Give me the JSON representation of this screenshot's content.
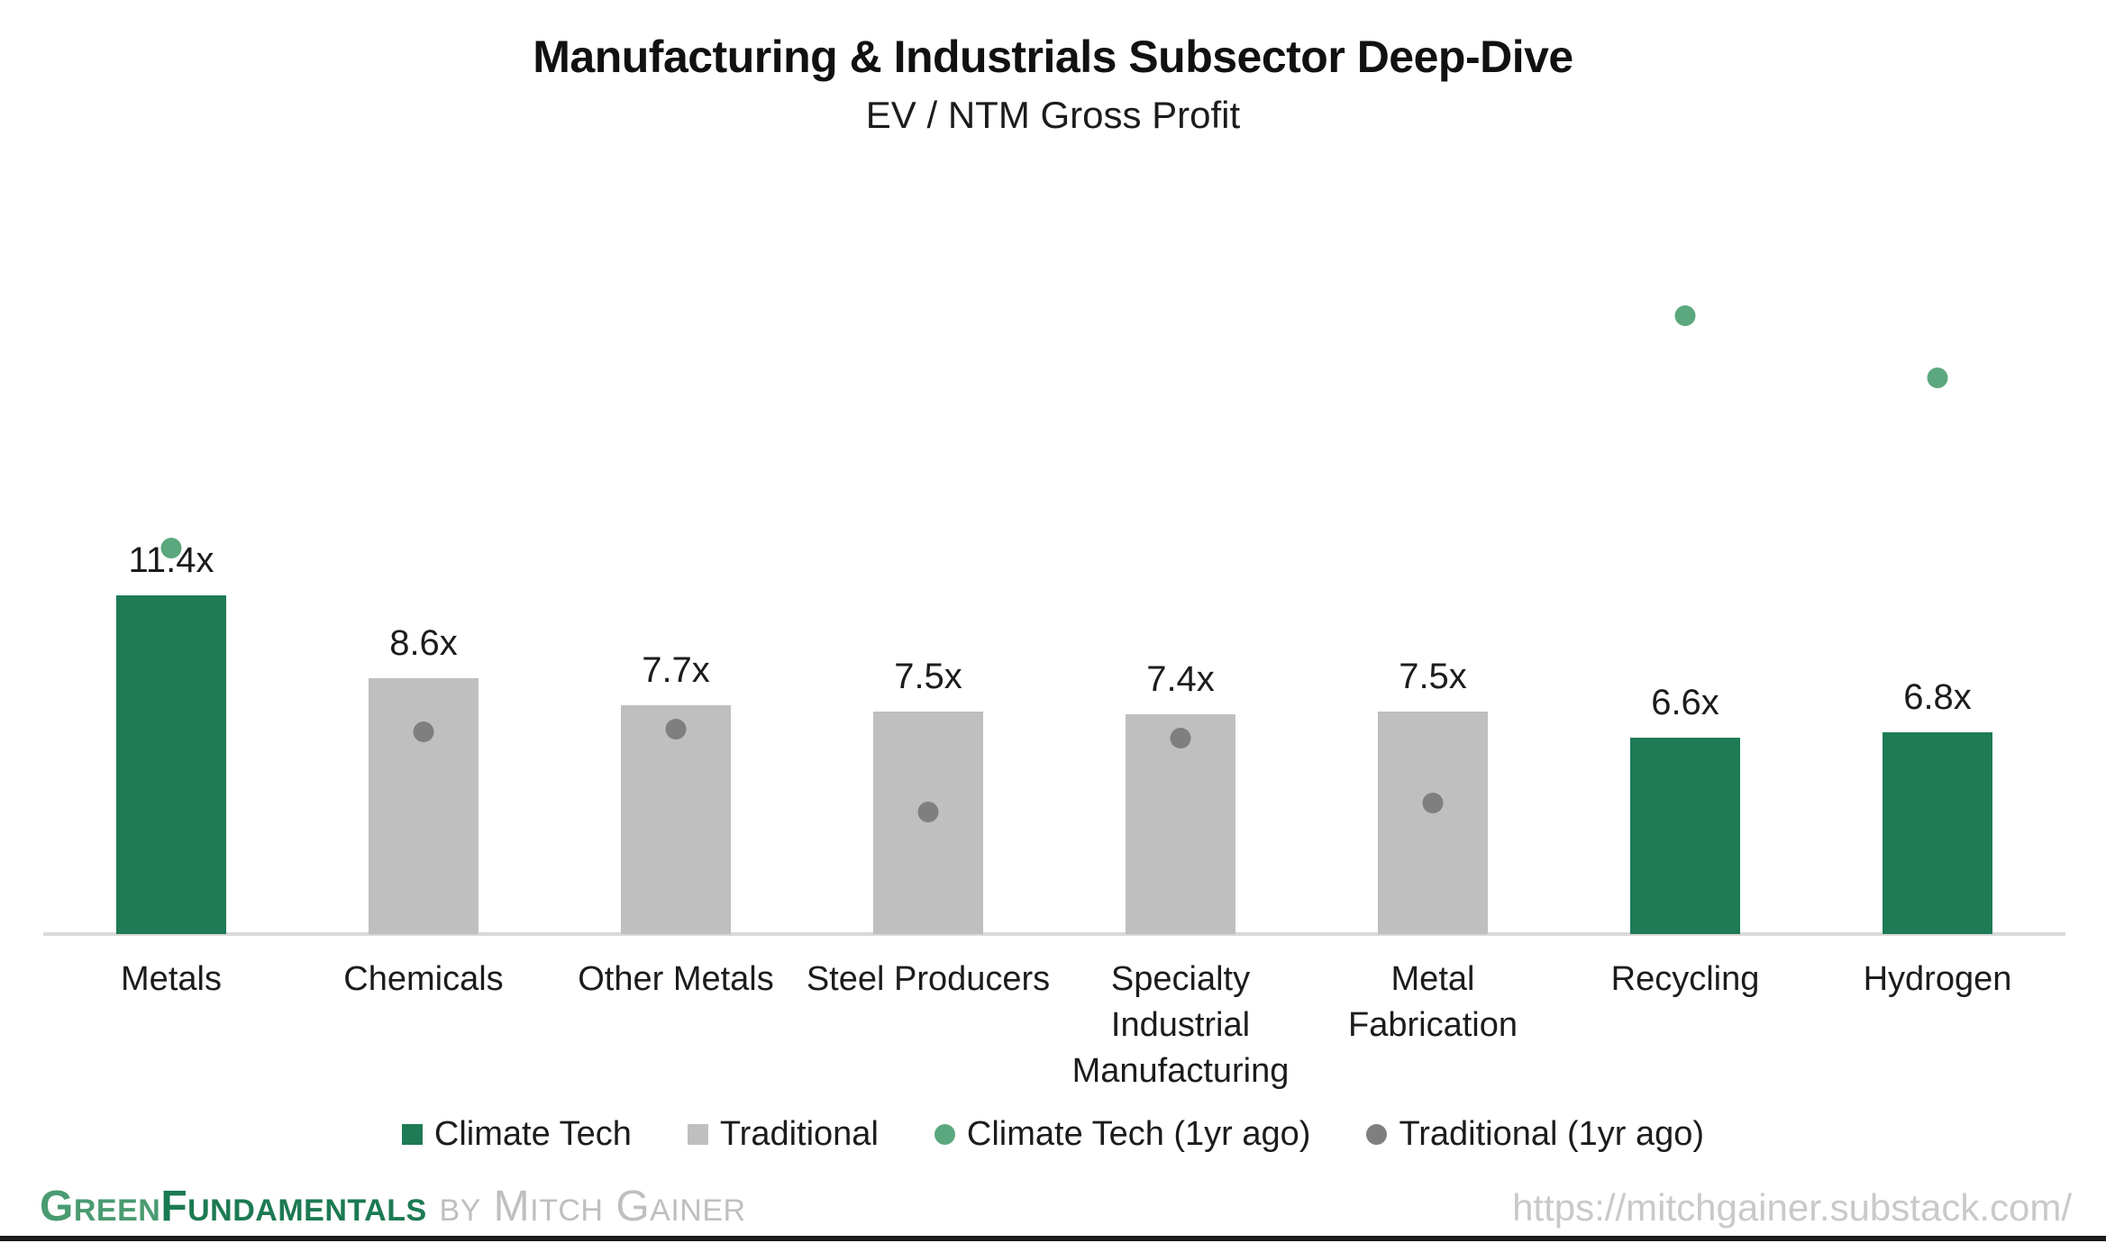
{
  "title": "Manufacturing & Industrials Subsector Deep-Dive",
  "subtitle": "EV / NTM Gross Profit",
  "chart_data": {
    "type": "bar",
    "unit_suffix": "x",
    "categories": [
      "Metals",
      "Chemicals",
      "Other Metals",
      "Steel Producers",
      "Specialty Industrial Manufacturing",
      "Metal Fabrication",
      "Recycling",
      "Hydrogen"
    ],
    "category_display": [
      "Metals",
      "Chemicals",
      "Other Metals",
      "Steel Producers",
      "Specialty\nIndustrial\nManufacturing",
      "Metal\nFabrication",
      "Recycling",
      "Hydrogen"
    ],
    "bar_labels": [
      "11.4x",
      "8.6x",
      "7.7x",
      "7.5x",
      "7.4x",
      "7.5x",
      "6.6x",
      "6.8x"
    ],
    "series": [
      {
        "name": "Climate Tech",
        "type": "bar",
        "color": "#1E7B55",
        "values": [
          11.4,
          null,
          null,
          null,
          null,
          null,
          6.6,
          6.8
        ]
      },
      {
        "name": "Traditional",
        "type": "bar",
        "color": "#BFBFBF",
        "values": [
          null,
          8.6,
          7.7,
          7.5,
          7.4,
          7.5,
          null,
          null
        ]
      },
      {
        "name": "Climate Tech (1yr ago)",
        "type": "scatter",
        "color": "#5BA87E",
        "values": [
          13.0,
          null,
          null,
          null,
          null,
          null,
          20.8,
          18.7
        ]
      },
      {
        "name": "Traditional (1yr ago)",
        "type": "scatter",
        "color": "#7F7F7F",
        "values": [
          null,
          6.8,
          6.9,
          4.1,
          6.6,
          4.4,
          null,
          null
        ]
      }
    ],
    "ylim": [
      0,
      24
    ],
    "grid": false,
    "y_axis_shown": false,
    "legend_position": "bottom",
    "axis_line_color": "#D9D9D9"
  },
  "legend": {
    "items": [
      {
        "label": "Climate Tech",
        "marker": "square",
        "color": "#1E7B55"
      },
      {
        "label": "Traditional",
        "marker": "square",
        "color": "#BFBFBF"
      },
      {
        "label": "Climate Tech (1yr ago)",
        "marker": "circle",
        "color": "#5BA87E"
      },
      {
        "label": "Traditional (1yr ago)",
        "marker": "circle",
        "color": "#7F7F7F"
      }
    ]
  },
  "footer": {
    "brand_green": "Green",
    "brand_dark": "Fundamentals",
    "byline": " by Mitch Gainer",
    "url": "https://mitchgainer.substack.com/",
    "brand_green_color": "#4A9B71",
    "brand_dark_color": "#1B7A52"
  }
}
